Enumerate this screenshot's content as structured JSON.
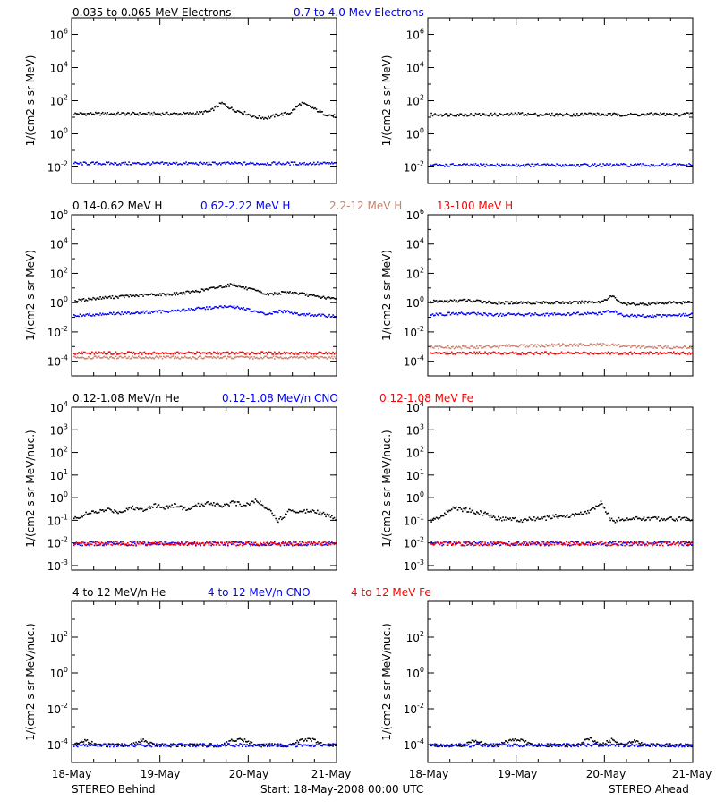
{
  "figure": {
    "footer": {
      "left": "STEREO Behind",
      "center": "Start: 18-May-2008 00:00 UTC",
      "right": "STEREO Ahead"
    },
    "x_tick_labels": [
      "18-May",
      "19-May",
      "20-May",
      "21-May"
    ]
  },
  "rows": [
    {
      "legend": [
        {
          "text": "0.035 to 0.065 MeV Electrons",
          "color": "#000000"
        },
        {
          "text": "0.7 to 4.0 Mev Electrons",
          "color": "#0000ff"
        }
      ]
    },
    {
      "legend": [
        {
          "text": "0.14-0.62 MeV H",
          "color": "#000000"
        },
        {
          "text": "0.62-2.22 MeV H",
          "color": "#0000ff"
        },
        {
          "text": "2.2-12 MeV H",
          "color": "#c8826e"
        },
        {
          "text": "13-100 MeV H",
          "color": "#ff0000"
        }
      ]
    },
    {
      "legend": [
        {
          "text": "0.12-1.08 MeV/n He",
          "color": "#000000"
        },
        {
          "text": "0.12-1.08 MeV/n CNO",
          "color": "#0000ff"
        },
        {
          "text": "0.12-1.08 MeV Fe",
          "color": "#ff0000"
        }
      ]
    },
    {
      "legend": [
        {
          "text": "4 to 12 MeV/n He",
          "color": "#000000"
        },
        {
          "text": "4 to 12 MeV/n CNO",
          "color": "#0000ff"
        },
        {
          "text": "4 to 12 MeV Fe",
          "color": "#ff0000"
        }
      ]
    }
  ],
  "chart_data": [
    {
      "type": "scatter",
      "id": "behind-electrons",
      "spacecraft": "Behind",
      "ylabel": "1/(cm2 s sr MeV)",
      "yscale": "log",
      "ylim_log10": [
        -3,
        7
      ],
      "yticks_log10": [
        -2,
        0,
        2,
        4,
        6
      ],
      "xlim": [
        "18-May",
        "21-May"
      ],
      "series": [
        {
          "name": "0.035 to 0.065 MeV Electrons",
          "color": "#000000",
          "y_log10": [
            1.25,
            1.25,
            1.25,
            1.25,
            1.25,
            1.25,
            1.25,
            1.25,
            1.25,
            1.25,
            1.25,
            1.3,
            1.4,
            1.9,
            1.5,
            1.3,
            1.05,
            1.0,
            1.2,
            1.3,
            1.9,
            1.6,
            1.25,
            1.1
          ]
        },
        {
          "name": "0.7 to 4.0 Mev Electrons",
          "color": "#0000ff",
          "y_log10": [
            -1.75,
            -1.75,
            -1.75,
            -1.75,
            -1.75,
            -1.75,
            -1.75,
            -1.75,
            -1.75,
            -1.75,
            -1.75,
            -1.75,
            -1.75,
            -1.75,
            -1.75,
            -1.75,
            -1.75,
            -1.75,
            -1.75,
            -1.75,
            -1.75,
            -1.75,
            -1.75,
            -1.75
          ]
        }
      ]
    },
    {
      "type": "scatter",
      "id": "ahead-electrons",
      "spacecraft": "Ahead",
      "ylabel": "1/(cm2 s sr MeV)",
      "yscale": "log",
      "ylim_log10": [
        -3,
        7
      ],
      "yticks_log10": [
        -2,
        0,
        2,
        4,
        6
      ],
      "xlim": [
        "18-May",
        "21-May"
      ],
      "series": [
        {
          "name": "0.035 to 0.065 MeV Electrons",
          "color": "#000000",
          "y_log10": [
            1.2,
            1.2,
            1.2,
            1.2,
            1.2,
            1.2,
            1.2,
            1.2,
            1.25,
            1.2,
            1.2,
            1.2,
            1.2,
            1.2,
            1.25,
            1.2,
            1.2,
            1.2,
            1.2,
            1.2,
            1.25,
            1.2,
            1.2,
            1.25
          ]
        },
        {
          "name": "0.7 to 4.0 Mev Electrons",
          "color": "#0000ff",
          "y_log10": [
            -1.85,
            -1.85,
            -1.85,
            -1.85,
            -1.85,
            -1.85,
            -1.85,
            -1.85,
            -1.85,
            -1.85,
            -1.85,
            -1.85,
            -1.85,
            -1.85,
            -1.85,
            -1.85,
            -1.85,
            -1.85,
            -1.85,
            -1.85,
            -1.85,
            -1.85,
            -1.85,
            -1.85
          ]
        }
      ]
    },
    {
      "type": "scatter",
      "id": "behind-protons",
      "spacecraft": "Behind",
      "ylabel": "1/(cm2 s sr MeV)",
      "yscale": "log",
      "ylim_log10": [
        -5,
        6
      ],
      "yticks_log10": [
        -4,
        -2,
        0,
        2,
        4,
        6
      ],
      "xlim": [
        "18-May",
        "21-May"
      ],
      "series": [
        {
          "name": "0.14-0.62 MeV H",
          "color": "#000000",
          "y_log10": [
            0.15,
            0.25,
            0.35,
            0.4,
            0.45,
            0.5,
            0.55,
            0.6,
            0.6,
            0.65,
            0.75,
            0.85,
            1.0,
            1.15,
            1.3,
            1.05,
            0.85,
            0.6,
            0.7,
            0.75,
            0.65,
            0.5,
            0.4,
            0.3
          ]
        },
        {
          "name": "0.62-2.22 MeV H",
          "color": "#0000ff",
          "y_log10": [
            -0.85,
            -0.8,
            -0.75,
            -0.7,
            -0.7,
            -0.65,
            -0.6,
            -0.6,
            -0.55,
            -0.5,
            -0.45,
            -0.35,
            -0.3,
            -0.25,
            -0.25,
            -0.35,
            -0.6,
            -0.75,
            -0.55,
            -0.6,
            -0.75,
            -0.8,
            -0.85,
            -0.85
          ]
        },
        {
          "name": "2.2-12 MeV H",
          "color": "#c8826e",
          "y_log10": [
            -3.7,
            -3.7,
            -3.7,
            -3.7,
            -3.7,
            -3.7,
            -3.7,
            -3.7,
            -3.7,
            -3.7,
            -3.7,
            -3.7,
            -3.7,
            -3.7,
            -3.7,
            -3.7,
            -3.7,
            -3.7,
            -3.7,
            -3.7,
            -3.7,
            -3.7,
            -3.7,
            -3.7
          ]
        },
        {
          "name": "13-100 MeV H",
          "color": "#ff0000",
          "y_log10": [
            -3.4,
            -3.4,
            -3.4,
            -3.4,
            -3.4,
            -3.4,
            -3.4,
            -3.4,
            -3.4,
            -3.4,
            -3.4,
            -3.4,
            -3.4,
            -3.4,
            -3.4,
            -3.4,
            -3.4,
            -3.4,
            -3.4,
            -3.4,
            -3.4,
            -3.4,
            -3.4,
            -3.4
          ]
        }
      ]
    },
    {
      "type": "scatter",
      "id": "ahead-protons",
      "spacecraft": "Ahead",
      "ylabel": "1/(cm2 s sr MeV)",
      "yscale": "log",
      "ylim_log10": [
        -5,
        6
      ],
      "yticks_log10": [
        -4,
        -2,
        0,
        2,
        4,
        6
      ],
      "xlim": [
        "18-May",
        "21-May"
      ],
      "series": [
        {
          "name": "0.14-0.62 MeV H",
          "color": "#000000",
          "y_log10": [
            0.1,
            0.15,
            0.15,
            0.2,
            0.15,
            0.1,
            0.0,
            0.05,
            0.05,
            0.05,
            0.05,
            0.05,
            0.05,
            0.05,
            0.1,
            0.1,
            0.5,
            -0.05,
            -0.05,
            -0.05,
            0.0,
            0.05,
            0.05,
            0.1
          ]
        },
        {
          "name": "0.62-2.22 MeV H",
          "color": "#0000ff",
          "y_log10": [
            -0.75,
            -0.75,
            -0.7,
            -0.7,
            -0.7,
            -0.75,
            -0.8,
            -0.75,
            -0.75,
            -0.75,
            -0.75,
            -0.75,
            -0.75,
            -0.7,
            -0.7,
            -0.7,
            -0.5,
            -0.85,
            -0.85,
            -0.85,
            -0.85,
            -0.8,
            -0.8,
            -0.75
          ]
        },
        {
          "name": "2.2-12 MeV H",
          "color": "#c8826e",
          "y_log10": [
            -3.0,
            -3.0,
            -3.0,
            -3.0,
            -3.0,
            -2.95,
            -2.95,
            -2.9,
            -2.9,
            -2.9,
            -2.9,
            -2.85,
            -2.85,
            -2.85,
            -2.8,
            -2.8,
            -2.85,
            -2.9,
            -2.95,
            -3.0,
            -3.0,
            -3.0,
            -3.0,
            -3.0
          ]
        },
        {
          "name": "13-100 MeV H",
          "color": "#ff0000",
          "y_log10": [
            -3.4,
            -3.4,
            -3.4,
            -3.4,
            -3.4,
            -3.4,
            -3.4,
            -3.4,
            -3.4,
            -3.4,
            -3.4,
            -3.4,
            -3.4,
            -3.4,
            -3.4,
            -3.4,
            -3.4,
            -3.4,
            -3.4,
            -3.4,
            -3.4,
            -3.4,
            -3.4,
            -3.4
          ]
        }
      ]
    },
    {
      "type": "scatter",
      "id": "behind-heavy-low",
      "spacecraft": "Behind",
      "ylabel": "1/(cm2 s sr MeV/nuc.)",
      "yscale": "log",
      "ylim_log10": [
        -3.2,
        4
      ],
      "yticks_log10": [
        -3,
        -2,
        -1,
        0,
        1,
        2,
        3,
        4
      ],
      "xlim": [
        "18-May",
        "21-May"
      ],
      "series": [
        {
          "name": "0.12-1.08 MeV/n He",
          "color": "#000000",
          "y_log10": [
            -0.9,
            -0.7,
            -0.6,
            -0.5,
            -0.6,
            -0.4,
            -0.5,
            -0.3,
            -0.4,
            -0.3,
            -0.5,
            -0.3,
            -0.2,
            -0.3,
            -0.2,
            -0.3,
            -0.1,
            -0.4,
            -1.0,
            -0.5,
            -0.6,
            -0.5,
            -0.7,
            -0.9
          ]
        },
        {
          "name": "0.12-1.08 MeV/n CNO",
          "color": "#0000ff",
          "y_log10": [
            -2.0,
            -2.0,
            -2.0,
            -2.0,
            -2.0,
            -2.0,
            -2.0,
            -2.0,
            -2.0,
            -2.0,
            -2.0,
            -2.0,
            -2.0,
            -2.0,
            -2.0,
            -2.0,
            -2.0,
            -2.0,
            -2.0,
            -2.0,
            -2.0,
            -2.0,
            -2.0,
            -2.0
          ]
        },
        {
          "name": "0.12-1.08 MeV Fe",
          "color": "#ff0000",
          "y_log10": [
            -2.0,
            -2.0,
            -2.0,
            -2.0,
            -2.0,
            -2.0,
            -2.0,
            -2.0,
            -2.0,
            -2.0,
            -2.0,
            -2.0,
            -2.0,
            -2.0,
            -2.0,
            -2.0,
            -2.0,
            -2.0,
            -2.0,
            -2.0,
            -2.0,
            -2.0,
            -2.0,
            -2.0
          ]
        }
      ]
    },
    {
      "type": "scatter",
      "id": "ahead-heavy-low",
      "spacecraft": "Ahead",
      "ylabel": "1/(cm2 s sr MeV/nuc.)",
      "yscale": "log",
      "ylim_log10": [
        -3.2,
        4
      ],
      "yticks_log10": [
        -3,
        -2,
        -1,
        0,
        1,
        2,
        3,
        4
      ],
      "xlim": [
        "18-May",
        "21-May"
      ],
      "series": [
        {
          "name": "0.12-1.08 MeV/n He",
          "color": "#000000",
          "y_log10": [
            -1.0,
            -0.8,
            -0.4,
            -0.5,
            -0.6,
            -0.7,
            -0.9,
            -0.9,
            -1.0,
            -0.9,
            -0.9,
            -0.8,
            -0.8,
            -0.7,
            -0.6,
            -0.2,
            -1.0,
            -0.9,
            -0.9,
            -0.9,
            -0.9,
            -0.9,
            -0.9,
            -0.9
          ]
        },
        {
          "name": "0.12-1.08 MeV/n CNO",
          "color": "#0000ff",
          "y_log10": [
            -2.0,
            -2.0,
            -2.0,
            -2.0,
            -2.0,
            -2.0,
            -2.0,
            -2.0,
            -2.0,
            -2.0,
            -2.0,
            -2.0,
            -2.0,
            -2.0,
            -2.0,
            -2.0,
            -2.0,
            -2.0,
            -2.0,
            -2.0,
            -2.0,
            -2.0,
            -2.0,
            -2.0
          ]
        },
        {
          "name": "0.12-1.08 MeV Fe",
          "color": "#ff0000",
          "y_log10": [
            -2.0,
            -2.0,
            -2.0,
            -2.0,
            -2.0,
            -2.0,
            -2.0,
            -2.0,
            -2.0,
            -2.0,
            -2.0,
            -2.0,
            -2.0,
            -2.0,
            -2.0,
            -2.0,
            -2.0,
            -2.0,
            -2.0,
            -2.0,
            -2.0,
            -2.0,
            -2.0,
            -2.0
          ]
        }
      ]
    },
    {
      "type": "scatter",
      "id": "behind-heavy-high",
      "spacecraft": "Behind",
      "ylabel": "1/(cm2 s sr MeV/nuc.)",
      "yscale": "log",
      "ylim_log10": [
        -5,
        4
      ],
      "yticks_log10": [
        -4,
        -2,
        0,
        2
      ],
      "xlim": [
        "18-May",
        "21-May"
      ],
      "series": [
        {
          "name": "4 to 12 MeV/n He",
          "color": "#000000",
          "y_log10": [
            -4.0,
            -3.7,
            -4.0,
            -4.0,
            -4.0,
            -4.0,
            -3.7,
            -4.0,
            -4.0,
            -4.0,
            -4.0,
            -4.0,
            -4.0,
            -4.0,
            -3.7,
            -3.7,
            -4.0,
            -4.0,
            -4.0,
            -4.0,
            -3.7,
            -3.7,
            -4.0,
            -4.0
          ]
        },
        {
          "name": "4 to 12 MeV/n CNO",
          "color": "#0000ff",
          "y_log10": [
            -4.0,
            -4.0,
            -4.0,
            -4.0,
            -4.0,
            -4.0,
            -4.0,
            -4.0,
            -4.0,
            -4.0,
            -4.0,
            -4.0,
            -4.0,
            -4.0,
            -4.0,
            -4.0,
            -4.0,
            -4.0,
            -4.0,
            -4.0,
            -4.0,
            -4.0,
            -4.0,
            -4.0
          ]
        },
        {
          "name": "4 to 12 MeV Fe",
          "color": "#ff0000",
          "y_log10": []
        }
      ]
    },
    {
      "type": "scatter",
      "id": "ahead-heavy-high",
      "spacecraft": "Ahead",
      "ylabel": "1/(cm2 s sr MeV/nuc.)",
      "yscale": "log",
      "ylim_log10": [
        -5,
        4
      ],
      "yticks_log10": [
        -4,
        -2,
        0,
        2
      ],
      "xlim": [
        "18-May",
        "21-May"
      ],
      "series": [
        {
          "name": "4 to 12 MeV/n He",
          "color": "#000000",
          "y_log10": [
            -4.0,
            -4.0,
            -4.0,
            -4.0,
            -3.7,
            -4.0,
            -4.0,
            -3.7,
            -3.7,
            -4.0,
            -4.0,
            -4.0,
            -4.0,
            -4.0,
            -3.6,
            -4.0,
            -3.7,
            -4.0,
            -3.7,
            -4.0,
            -4.0,
            -4.0,
            -4.0,
            -4.0
          ]
        },
        {
          "name": "4 to 12 MeV/n CNO",
          "color": "#0000ff",
          "y_log10": [
            -4.0,
            -4.0,
            -4.0,
            -4.0,
            -4.0,
            -4.0,
            -4.0,
            -4.0,
            -4.0,
            -4.0,
            -4.0,
            -4.0,
            -4.0,
            -4.0,
            -4.0,
            -4.0,
            -4.0,
            -4.0,
            -4.0,
            -4.0,
            -4.0,
            -4.0,
            -4.0,
            -4.0
          ]
        },
        {
          "name": "4 to 12 MeV Fe",
          "color": "#ff0000",
          "y_log10": []
        }
      ]
    }
  ]
}
